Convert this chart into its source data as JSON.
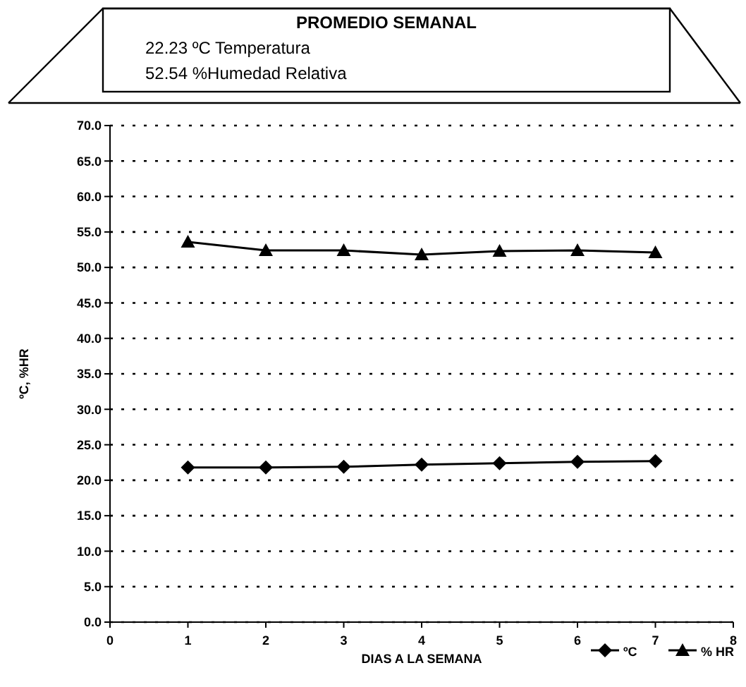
{
  "chart_data": {
    "type": "line",
    "title": "PROMEDIO SEMANAL",
    "annotations": [
      "22.23 ºC Temperatura",
      "52.54 %Humedad Relativa"
    ],
    "xlabel": "DIAS A LA SEMANA",
    "ylabel": "ºC, %HR",
    "x": [
      1,
      2,
      3,
      4,
      5,
      6,
      7
    ],
    "series": [
      {
        "name": "ºC",
        "color": "#000000",
        "marker": "diamond",
        "values": [
          21.8,
          21.8,
          21.9,
          22.2,
          22.4,
          22.6,
          22.7
        ]
      },
      {
        "name": "% HR",
        "color": "#000000",
        "marker": "triangle",
        "values": [
          53.6,
          52.4,
          52.4,
          51.8,
          52.3,
          52.4,
          52.1
        ]
      }
    ],
    "xlim": [
      0,
      8
    ],
    "xticks": [
      0,
      1,
      2,
      3,
      4,
      5,
      6,
      7,
      8
    ],
    "ylim": [
      0,
      70
    ],
    "yticks": [
      {
        "value": 0,
        "label": "0.0"
      },
      {
        "value": 5,
        "label": "5.0"
      },
      {
        "value": 10,
        "label": "10.0"
      },
      {
        "value": 15,
        "label": "15.0"
      },
      {
        "value": 20,
        "label": "20.0"
      },
      {
        "value": 25,
        "label": "25.0"
      },
      {
        "value": 30,
        "label": "30.0"
      },
      {
        "value": 35,
        "label": "35.0"
      },
      {
        "value": 40,
        "label": "40.0"
      },
      {
        "value": 45,
        "label": "45.0"
      },
      {
        "value": 50,
        "label": "50.0"
      },
      {
        "value": 55,
        "label": "55.0"
      },
      {
        "value": 60,
        "label": "60.0"
      },
      {
        "value": 65,
        "label": "65.0"
      },
      {
        "value": 70,
        "label": "70.0"
      }
    ],
    "grid": "y",
    "legend": "bottom right",
    "line_style": "solid"
  }
}
